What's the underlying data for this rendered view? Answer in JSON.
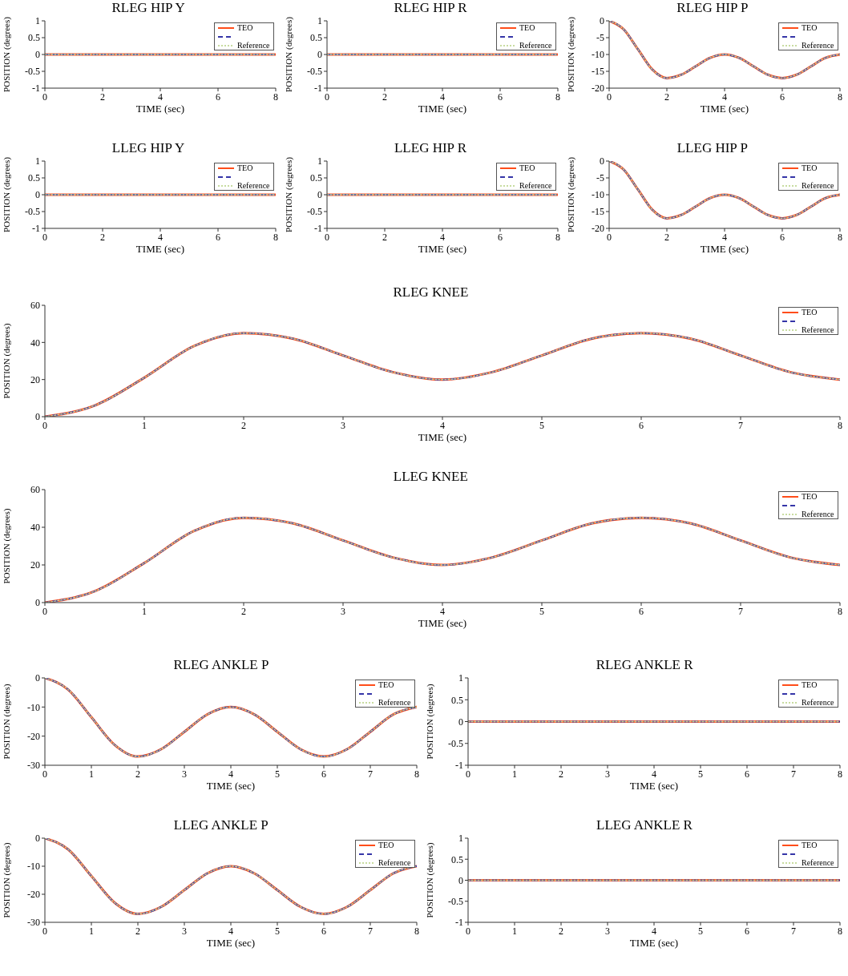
{
  "chart_data": [
    {
      "type": "line",
      "title": "RLEG HIP Y",
      "xlabel": "TIME (sec)",
      "ylabel": "POSITION (degrees)",
      "x": [
        0,
        8
      ],
      "xlim": [
        0,
        8
      ],
      "xticks": [
        0,
        2,
        4,
        6,
        8
      ],
      "ylim": [
        -1,
        1
      ],
      "yticks": [
        -1,
        -0.5,
        0,
        0.5,
        1
      ],
      "legend": "top right",
      "series": [
        {
          "name": "TEO",
          "color": "#ff4d1a",
          "line_style": "solid",
          "values": [
            0,
            0
          ]
        },
        {
          "color": "#3535a8",
          "line_style": "dashed",
          "values": [
            0,
            0
          ]
        },
        {
          "name": "Reference",
          "color": "#c8dca0",
          "line_style": "dotted",
          "values": [
            0,
            0
          ]
        }
      ]
    },
    {
      "type": "line",
      "title": "RLEG HIP R",
      "xlabel": "TIME (sec)",
      "ylabel": "POSITION (degrees)",
      "x": [
        0,
        8
      ],
      "xlim": [
        0,
        8
      ],
      "xticks": [
        0,
        2,
        4,
        6,
        8
      ],
      "ylim": [
        -1,
        1
      ],
      "yticks": [
        -1,
        -0.5,
        0,
        0.5,
        1
      ],
      "legend": "top right",
      "series": [
        {
          "name": "TEO",
          "color": "#ff4d1a",
          "line_style": "solid",
          "values": [
            0,
            0
          ]
        },
        {
          "color": "#3535a8",
          "line_style": "dashed",
          "values": [
            0,
            0
          ]
        },
        {
          "name": "Reference",
          "color": "#c8dca0",
          "line_style": "dotted",
          "values": [
            0,
            0
          ]
        }
      ]
    },
    {
      "type": "line",
      "title": "RLEG HIP P",
      "xlabel": "TIME (sec)",
      "ylabel": "POSITION (degrees)",
      "x": [
        0,
        0.5,
        1,
        1.5,
        2,
        2.5,
        3,
        3.5,
        4,
        4.5,
        5,
        5.5,
        6,
        6.5,
        7,
        7.5,
        8
      ],
      "xlim": [
        0,
        8
      ],
      "xticks": [
        0,
        2,
        4,
        6,
        8
      ],
      "ylim": [
        -20,
        0
      ],
      "yticks": [
        -20,
        -15,
        -10,
        -5,
        0
      ],
      "legend": "top right",
      "series": [
        {
          "name": "TEO",
          "color": "#ff4d1a",
          "line_style": "solid",
          "values": [
            0,
            -2.5,
            -8.5,
            -14.5,
            -17,
            -16,
            -13.5,
            -11,
            -10,
            -11,
            -13.5,
            -16,
            -17,
            -16,
            -13.5,
            -11,
            -10
          ]
        },
        {
          "color": "#3535a8",
          "line_style": "dashed",
          "values": [
            0,
            -2.5,
            -8.5,
            -14.5,
            -17,
            -16,
            -13.5,
            -11,
            -10,
            -11,
            -13.5,
            -16,
            -17,
            -16,
            -13.5,
            -11,
            -10
          ]
        },
        {
          "name": "Reference",
          "color": "#c8dca0",
          "line_style": "dotted",
          "values": [
            0,
            -2.5,
            -8.5,
            -14.5,
            -17,
            -16,
            -13.5,
            -11,
            -10,
            -11,
            -13.5,
            -16,
            -17,
            -16,
            -13.5,
            -11,
            -10
          ]
        }
      ]
    },
    {
      "type": "line",
      "title": "LLEG HIP Y",
      "xlabel": "TIME (sec)",
      "ylabel": "POSITION (degrees)",
      "x": [
        0,
        8
      ],
      "xlim": [
        0,
        8
      ],
      "xticks": [
        0,
        2,
        4,
        6,
        8
      ],
      "ylim": [
        -1,
        1
      ],
      "yticks": [
        -1,
        -0.5,
        0,
        0.5,
        1
      ],
      "legend": "top right",
      "series": [
        {
          "name": "TEO",
          "color": "#ff4d1a",
          "line_style": "solid",
          "values": [
            0,
            0
          ]
        },
        {
          "color": "#3535a8",
          "line_style": "dashed",
          "values": [
            0,
            0
          ]
        },
        {
          "name": "Reference",
          "color": "#c8dca0",
          "line_style": "dotted",
          "values": [
            0,
            0
          ]
        }
      ]
    },
    {
      "type": "line",
      "title": "LLEG HIP R",
      "xlabel": "TIME (sec)",
      "ylabel": "POSITION (degrees)",
      "x": [
        0,
        8
      ],
      "xlim": [
        0,
        8
      ],
      "xticks": [
        0,
        2,
        4,
        6,
        8
      ],
      "ylim": [
        -1,
        1
      ],
      "yticks": [
        -1,
        -0.5,
        0,
        0.5,
        1
      ],
      "legend": "top right",
      "series": [
        {
          "name": "TEO",
          "color": "#ff4d1a",
          "line_style": "solid",
          "values": [
            0,
            0
          ]
        },
        {
          "color": "#3535a8",
          "line_style": "dashed",
          "values": [
            0,
            0
          ]
        },
        {
          "name": "Reference",
          "color": "#c8dca0",
          "line_style": "dotted",
          "values": [
            0,
            0
          ]
        }
      ]
    },
    {
      "type": "line",
      "title": "LLEG HIP P",
      "xlabel": "TIME (sec)",
      "ylabel": "POSITION (degrees)",
      "x": [
        0,
        0.5,
        1,
        1.5,
        2,
        2.5,
        3,
        3.5,
        4,
        4.5,
        5,
        5.5,
        6,
        6.5,
        7,
        7.5,
        8
      ],
      "xlim": [
        0,
        8
      ],
      "xticks": [
        0,
        2,
        4,
        6,
        8
      ],
      "ylim": [
        -20,
        0
      ],
      "yticks": [
        -20,
        -15,
        -10,
        -5,
        0
      ],
      "legend": "top right",
      "series": [
        {
          "name": "TEO",
          "color": "#ff4d1a",
          "line_style": "solid",
          "values": [
            0,
            -2.5,
            -8.5,
            -14.5,
            -17,
            -16,
            -13.5,
            -11,
            -10,
            -11,
            -13.5,
            -16,
            -17,
            -16,
            -13.5,
            -11,
            -10
          ]
        },
        {
          "color": "#3535a8",
          "line_style": "dashed",
          "values": [
            0,
            -2.5,
            -8.5,
            -14.5,
            -17,
            -16,
            -13.5,
            -11,
            -10,
            -11,
            -13.5,
            -16,
            -17,
            -16,
            -13.5,
            -11,
            -10
          ]
        },
        {
          "name": "Reference",
          "color": "#c8dca0",
          "line_style": "dotted",
          "values": [
            0,
            -2.5,
            -8.5,
            -14.5,
            -17,
            -16,
            -13.5,
            -11,
            -10,
            -11,
            -13.5,
            -16,
            -17,
            -16,
            -13.5,
            -11,
            -10
          ]
        }
      ]
    },
    {
      "type": "line",
      "title": "RLEG KNEE",
      "xlabel": "TIME (sec)",
      "ylabel": "POSITION (degrees)",
      "x": [
        0,
        0.5,
        1,
        1.5,
        2,
        2.5,
        3,
        3.5,
        4,
        4.5,
        5,
        5.5,
        6,
        6.5,
        7,
        7.5,
        8
      ],
      "xlim": [
        0,
        8
      ],
      "xticks": [
        0,
        1,
        2,
        3,
        4,
        5,
        6,
        7,
        8
      ],
      "ylim": [
        0,
        60
      ],
      "yticks": [
        0,
        20,
        40,
        60
      ],
      "legend": "top right",
      "series": [
        {
          "name": "TEO",
          "color": "#ff4d1a",
          "line_style": "solid",
          "values": [
            0,
            6,
            21,
            38,
            45,
            42,
            33,
            24,
            20,
            24,
            33,
            42,
            45,
            42,
            33,
            24,
            20
          ]
        },
        {
          "color": "#3535a8",
          "line_style": "dashed",
          "values": [
            0,
            6,
            21,
            38,
            45,
            42,
            33,
            24,
            20,
            24,
            33,
            42,
            45,
            42,
            33,
            24,
            20
          ]
        },
        {
          "name": "Reference",
          "color": "#c8dca0",
          "line_style": "dotted",
          "values": [
            0,
            6,
            21,
            38,
            45,
            42,
            33,
            24,
            20,
            24,
            33,
            42,
            45,
            42,
            33,
            24,
            20
          ]
        }
      ]
    },
    {
      "type": "line",
      "title": "LLEG KNEE",
      "xlabel": "TIME (sec)",
      "ylabel": "POSITION (degrees)",
      "x": [
        0,
        0.5,
        1,
        1.5,
        2,
        2.5,
        3,
        3.5,
        4,
        4.5,
        5,
        5.5,
        6,
        6.5,
        7,
        7.5,
        8
      ],
      "xlim": [
        0,
        8
      ],
      "xticks": [
        0,
        1,
        2,
        3,
        4,
        5,
        6,
        7,
        8
      ],
      "ylim": [
        0,
        60
      ],
      "yticks": [
        0,
        20,
        40,
        60
      ],
      "legend": "top right",
      "series": [
        {
          "name": "TEO",
          "color": "#ff4d1a",
          "line_style": "solid",
          "values": [
            0,
            6,
            21,
            38,
            45,
            42,
            33,
            24,
            20,
            24,
            33,
            42,
            45,
            42,
            33,
            24,
            20
          ]
        },
        {
          "color": "#3535a8",
          "line_style": "dashed",
          "values": [
            0,
            6,
            21,
            38,
            45,
            42,
            33,
            24,
            20,
            24,
            33,
            42,
            45,
            42,
            33,
            24,
            20
          ]
        },
        {
          "name": "Reference",
          "color": "#c8dca0",
          "line_style": "dotted",
          "values": [
            0,
            6,
            21,
            38,
            45,
            42,
            33,
            24,
            20,
            24,
            33,
            42,
            45,
            42,
            33,
            24,
            20
          ]
        }
      ]
    },
    {
      "type": "line",
      "title": "RLEG ANKLE P",
      "xlabel": "TIME (sec)",
      "ylabel": "POSITION (degrees)",
      "x": [
        0,
        0.5,
        1,
        1.5,
        2,
        2.5,
        3,
        3.5,
        4,
        4.5,
        5,
        5.5,
        6,
        6.5,
        7,
        7.5,
        8
      ],
      "xlim": [
        0,
        8
      ],
      "xticks": [
        0,
        1,
        2,
        3,
        4,
        5,
        6,
        7,
        8
      ],
      "ylim": [
        -30,
        0
      ],
      "yticks": [
        -30,
        -20,
        -10,
        0
      ],
      "legend": "top right",
      "series": [
        {
          "name": "TEO",
          "color": "#ff4d1a",
          "line_style": "solid",
          "values": [
            0,
            -4,
            -13.5,
            -23,
            -27,
            -24.5,
            -18.5,
            -12.5,
            -10,
            -12.5,
            -18.5,
            -24.5,
            -27,
            -24.5,
            -18.5,
            -12.5,
            -10
          ]
        },
        {
          "color": "#3535a8",
          "line_style": "dashed",
          "values": [
            0,
            -4,
            -13.5,
            -23,
            -27,
            -24.5,
            -18.5,
            -12.5,
            -10,
            -12.5,
            -18.5,
            -24.5,
            -27,
            -24.5,
            -18.5,
            -12.5,
            -10
          ]
        },
        {
          "name": "Reference",
          "color": "#c8dca0",
          "line_style": "dotted",
          "values": [
            0,
            -4,
            -13.5,
            -23,
            -27,
            -24.5,
            -18.5,
            -12.5,
            -10,
            -12.5,
            -18.5,
            -24.5,
            -27,
            -24.5,
            -18.5,
            -12.5,
            -10
          ]
        }
      ]
    },
    {
      "type": "line",
      "title": "RLEG ANKLE R",
      "xlabel": "TIME (sec)",
      "ylabel": "POSITION (degrees)",
      "x": [
        0,
        8
      ],
      "xlim": [
        0,
        8
      ],
      "xticks": [
        0,
        1,
        2,
        3,
        4,
        5,
        6,
        7,
        8
      ],
      "ylim": [
        -1,
        1
      ],
      "yticks": [
        -1,
        -0.5,
        0,
        0.5,
        1
      ],
      "legend": "top right",
      "series": [
        {
          "name": "TEO",
          "color": "#ff4d1a",
          "line_style": "solid",
          "values": [
            0,
            0
          ]
        },
        {
          "color": "#3535a8",
          "line_style": "dashed",
          "values": [
            0,
            0
          ]
        },
        {
          "name": "Reference",
          "color": "#c8dca0",
          "line_style": "dotted",
          "values": [
            0,
            0
          ]
        }
      ]
    },
    {
      "type": "line",
      "title": "LLEG ANKLE P",
      "xlabel": "TIME (sec)",
      "ylabel": "POSITION (degrees)",
      "x": [
        0,
        0.5,
        1,
        1.5,
        2,
        2.5,
        3,
        3.5,
        4,
        4.5,
        5,
        5.5,
        6,
        6.5,
        7,
        7.5,
        8
      ],
      "xlim": [
        0,
        8
      ],
      "xticks": [
        0,
        1,
        2,
        3,
        4,
        5,
        6,
        7,
        8
      ],
      "ylim": [
        -30,
        0
      ],
      "yticks": [
        -30,
        -20,
        -10,
        0
      ],
      "legend": "top right",
      "series": [
        {
          "name": "TEO",
          "color": "#ff4d1a",
          "line_style": "solid",
          "values": [
            0,
            -4,
            -13.5,
            -23,
            -27,
            -24.5,
            -18.5,
            -12.5,
            -10,
            -12.5,
            -18.5,
            -24.5,
            -27,
            -24.5,
            -18.5,
            -12.5,
            -10
          ]
        },
        {
          "color": "#3535a8",
          "line_style": "dashed",
          "values": [
            0,
            -4,
            -13.5,
            -23,
            -27,
            -24.5,
            -18.5,
            -12.5,
            -10,
            -12.5,
            -18.5,
            -24.5,
            -27,
            -24.5,
            -18.5,
            -12.5,
            -10
          ]
        },
        {
          "name": "Reference",
          "color": "#c8dca0",
          "line_style": "dotted",
          "values": [
            0,
            -4,
            -13.5,
            -23,
            -27,
            -24.5,
            -18.5,
            -12.5,
            -10,
            -12.5,
            -18.5,
            -24.5,
            -27,
            -24.5,
            -18.5,
            -12.5,
            -10
          ]
        }
      ]
    },
    {
      "type": "line",
      "title": "LLEG ANKLE R",
      "xlabel": "TIME (sec)",
      "ylabel": "POSITION (degrees)",
      "x": [
        0,
        8
      ],
      "xlim": [
        0,
        8
      ],
      "xticks": [
        0,
        1,
        2,
        3,
        4,
        5,
        6,
        7,
        8
      ],
      "ylim": [
        -1,
        1
      ],
      "yticks": [
        -1,
        -0.5,
        0,
        0.5,
        1
      ],
      "legend": "top right",
      "series": [
        {
          "name": "TEO",
          "color": "#ff4d1a",
          "line_style": "solid",
          "values": [
            0,
            0
          ]
        },
        {
          "color": "#3535a8",
          "line_style": "dashed",
          "values": [
            0,
            0
          ]
        },
        {
          "name": "Reference",
          "color": "#c8dca0",
          "line_style": "dotted",
          "values": [
            0,
            0
          ]
        }
      ]
    }
  ]
}
